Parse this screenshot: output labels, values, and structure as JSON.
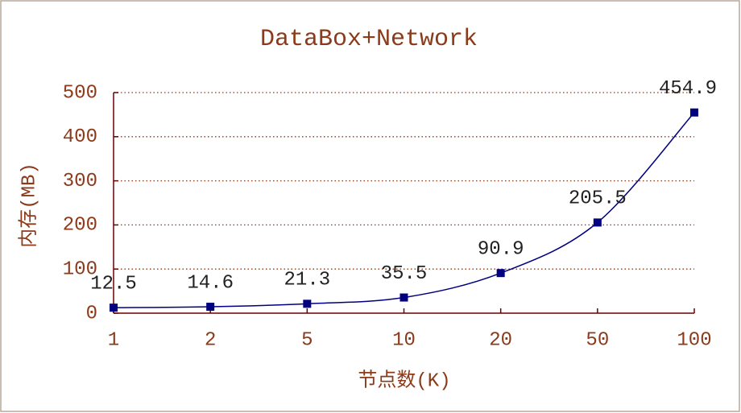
{
  "chart_data": {
    "type": "line",
    "title": "DataBox+Network",
    "x_label": "节点数(K)",
    "y_label": "内存(MB)",
    "categories": [
      "1",
      "2",
      "5",
      "10",
      "20",
      "50",
      "100"
    ],
    "series": [
      {
        "color": "#000080",
        "values": [
          12.5,
          14.6,
          21.3,
          35.5,
          90.9,
          205.5,
          454.9
        ]
      }
    ],
    "ylim": [
      0,
      500
    ],
    "yticks": [
      0,
      100,
      200,
      300,
      400,
      500
    ],
    "grid": true,
    "smooth": true
  }
}
